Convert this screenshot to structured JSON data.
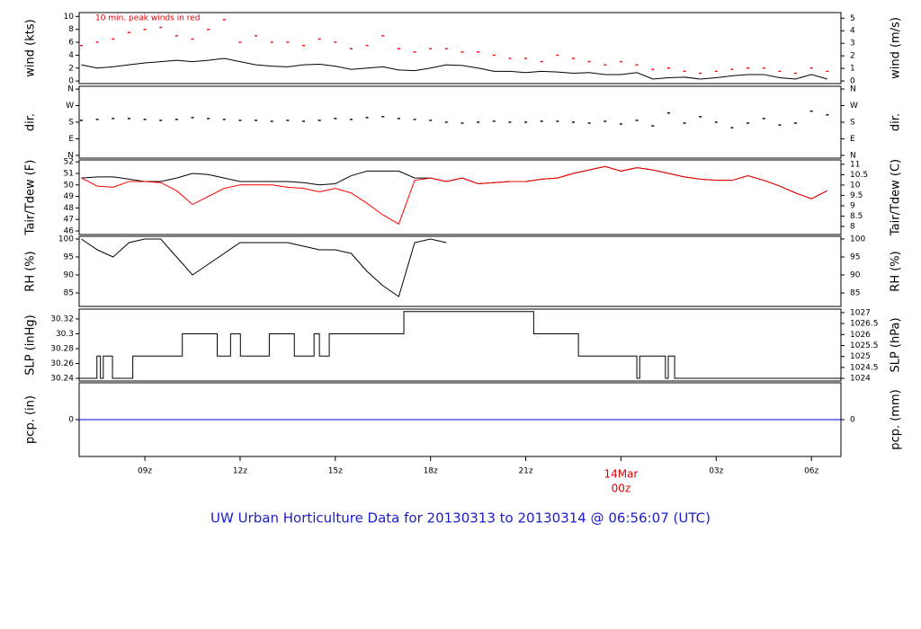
{
  "title": "UW Urban Horticulture Data for 20130313  to  20130314 @ 06:56:07  (UTC)",
  "chart_data": [
    {
      "type": "line",
      "ylabel": "wind (kts)",
      "y2label": "wind (m/s)",
      "annotation": "10 min. peak winds in red",
      "xlim": [
        6.93,
        30.93
      ],
      "ylim": [
        -0.4,
        10.6
      ],
      "yticks": [
        0,
        2,
        4,
        6,
        8,
        10
      ],
      "y2lim": [
        -0.21,
        5.45
      ],
      "y2ticks": [
        0,
        1,
        2,
        3,
        4,
        5
      ],
      "x": [
        7,
        7.5,
        8,
        8.5,
        9,
        9.5,
        10,
        10.5,
        11,
        11.5,
        12,
        12.5,
        13,
        13.5,
        14,
        14.5,
        15,
        15.5,
        16,
        16.5,
        17,
        17.5,
        18,
        18.5,
        19,
        19.5,
        20,
        20.5,
        21,
        21.5,
        22,
        22.5,
        23,
        23.5,
        24,
        24.5,
        25,
        25.5,
        26,
        26.5,
        27,
        27.5,
        28,
        28.5,
        29,
        29.5,
        30,
        30.5
      ],
      "series": [
        {
          "color": "#000000",
          "mode": "line",
          "values": [
            2.5,
            2,
            2.2,
            2.5,
            2.8,
            3,
            3.2,
            3,
            3.2,
            3.5,
            3,
            2.5,
            2.3,
            2.2,
            2.5,
            2.6,
            2.3,
            1.8,
            2,
            2.2,
            1.7,
            1.6,
            2,
            2.5,
            2.4,
            2,
            1.5,
            1.5,
            1.3,
            1.5,
            1.4,
            1.2,
            1.3,
            1,
            1,
            1.3,
            0.3,
            0.5,
            0.6,
            0.3,
            0.5,
            0.8,
            1,
            1,
            0.5,
            0.3,
            1,
            0.3
          ]
        },
        {
          "color": "#ff0000",
          "mode": "markers",
          "values": [
            5.5,
            6,
            6.5,
            7.5,
            8,
            8.3,
            7,
            6.5,
            8,
            9.5,
            6,
            7,
            6,
            6,
            5.5,
            6.5,
            6,
            5,
            5.5,
            7,
            5,
            4.5,
            5,
            5,
            4.5,
            4.5,
            4,
            3.5,
            3.5,
            3,
            4,
            3.5,
            3,
            2.5,
            3,
            2.5,
            1.8,
            2,
            1.5,
            1.2,
            1.5,
            1.8,
            2,
            2,
            1.5,
            1.2,
            2,
            1.5
          ]
        }
      ]
    },
    {
      "type": "scatter",
      "ylabel": "dir.",
      "y2label": "dir.",
      "xlim": [
        6.93,
        30.93
      ],
      "ylim": [
        -15,
        375
      ],
      "yticks": [
        {
          "value": 0,
          "label": "N"
        },
        {
          "value": 90,
          "label": "E"
        },
        {
          "value": 180,
          "label": "S"
        },
        {
          "value": 270,
          "label": "W"
        },
        {
          "value": 360,
          "label": "N"
        }
      ],
      "y2lim": [
        -15,
        375
      ],
      "y2ticks": [
        {
          "value": 0,
          "label": "N"
        },
        {
          "value": 90,
          "label": "E"
        },
        {
          "value": 180,
          "label": "S"
        },
        {
          "value": 270,
          "label": "W"
        },
        {
          "value": 360,
          "label": "N"
        }
      ],
      "x": [
        7,
        7.5,
        8,
        8.5,
        9,
        9.5,
        10,
        10.5,
        11,
        11.5,
        12,
        12.5,
        13,
        13.5,
        14,
        14.5,
        15,
        15.5,
        16,
        16.5,
        17,
        17.5,
        18,
        18.5,
        19,
        19.5,
        20,
        20.5,
        21,
        21.5,
        22,
        22.5,
        23,
        23.5,
        24,
        24.5,
        25,
        25.5,
        26,
        26.5,
        27,
        27.5,
        28,
        28.5,
        29,
        29.5,
        30,
        30.5
      ],
      "series": [
        {
          "color": "#000000",
          "mode": "markers",
          "values": [
            190,
            195,
            200,
            200,
            195,
            190,
            195,
            205,
            200,
            195,
            190,
            190,
            185,
            190,
            185,
            190,
            200,
            195,
            205,
            210,
            200,
            195,
            190,
            180,
            175,
            180,
            185,
            180,
            180,
            185,
            185,
            180,
            175,
            185,
            170,
            190,
            160,
            230,
            175,
            210,
            180,
            150,
            175,
            200,
            165,
            175,
            240,
            220
          ]
        }
      ]
    },
    {
      "type": "line",
      "ylabel": "Tair/Tdew (F)",
      "y2label": "Tair/Tdew (C)",
      "xlim": [
        6.93,
        30.93
      ],
      "ylim": [
        45.69,
        52.17
      ],
      "yticks": [
        46,
        47,
        48,
        49,
        50,
        51,
        52
      ],
      "y2lim": [
        7.61,
        11.21
      ],
      "y2ticks": [
        8,
        8.5,
        9,
        9.5,
        10,
        10.5,
        11
      ],
      "x": [
        7,
        7.5,
        8,
        8.5,
        9,
        9.5,
        10,
        10.5,
        11,
        11.5,
        12,
        12.5,
        13,
        13.5,
        14,
        14.5,
        15,
        15.5,
        16,
        16.5,
        17,
        17.5,
        18,
        18.5,
        19,
        19.5,
        20,
        20.5,
        21,
        21.5,
        22,
        22.5,
        23,
        23.5,
        24,
        24.5,
        25,
        25.5,
        26,
        26.5,
        27,
        27.5,
        28,
        28.5,
        29,
        29.5,
        30,
        30.5
      ],
      "series": [
        {
          "color": "#000000",
          "mode": "line",
          "values": [
            50.6,
            50.7,
            50.7,
            50.5,
            50.3,
            50.3,
            50.6,
            51,
            50.9,
            50.6,
            50.3,
            50.3,
            50.3,
            50.3,
            50.2,
            50,
            50.1,
            50.8,
            51.2,
            51.2,
            51.2,
            50.6,
            50.6,
            50.3,
            50.6,
            50.1,
            50.2,
            50.3,
            50.3,
            50.5,
            50.6,
            51,
            51.3,
            51.6,
            51.2,
            51.5,
            51.3,
            51,
            50.7,
            50.5,
            50.4,
            50.4,
            50.8,
            50.4,
            49.9,
            49.3,
            48.8,
            49.5
          ]
        },
        {
          "color": "#ff0000",
          "mode": "line",
          "values": [
            50.6,
            49.9,
            49.8,
            50.3,
            50.3,
            50.2,
            49.5,
            48.3,
            49,
            49.7,
            50,
            50,
            50,
            49.8,
            49.7,
            49.4,
            49.7,
            49.3,
            48.4,
            47.4,
            46.6,
            50.4,
            50.6,
            50.3,
            50.6,
            50.1,
            50.2,
            50.3,
            50.3,
            50.5,
            50.6,
            51,
            51.3,
            51.6,
            51.2,
            51.5,
            51.3,
            51,
            50.7,
            50.5,
            50.4,
            50.4,
            50.8,
            50.4,
            49.9,
            49.3,
            48.8,
            49.5
          ]
        }
      ]
    },
    {
      "type": "line",
      "ylabel": "RH (%)",
      "y2label": "RH (%)",
      "xlim": [
        6.93,
        30.93
      ],
      "ylim": [
        81.25,
        100.75
      ],
      "yticks": [
        85,
        90,
        95,
        100
      ],
      "y2lim": [
        81.25,
        100.75
      ],
      "y2ticks": [
        85,
        90,
        95,
        100
      ],
      "x": [
        7,
        7.5,
        8,
        8.5,
        9,
        9.5,
        10,
        10.5,
        11,
        11.5,
        12,
        12.5,
        13,
        13.5,
        14,
        14.5,
        15,
        15.5,
        16,
        16.5,
        17,
        17.5,
        18,
        18.5,
        19,
        19.5,
        20,
        20.5,
        21,
        21.5,
        22,
        22.5,
        23,
        23.5,
        24,
        24.5,
        25,
        25.5,
        26,
        26.5,
        27,
        27.5,
        28,
        28.5,
        29,
        29.5,
        30,
        30.5
      ],
      "series": [
        {
          "color": "#000000",
          "mode": "line",
          "values": [
            100,
            97,
            95,
            99,
            100,
            100,
            95,
            90,
            93,
            96,
            99,
            99,
            99,
            99,
            98,
            97,
            97,
            96,
            91,
            87,
            84,
            99,
            100,
            99,
            null,
            null,
            null,
            null,
            null,
            null,
            null,
            null,
            null,
            null,
            null,
            null,
            null,
            null,
            null,
            null,
            null,
            null,
            null,
            null,
            null,
            null,
            null,
            null
          ]
        }
      ]
    },
    {
      "type": "line",
      "ylabel": "SLP (inHg)",
      "y2label": "SLP (hPa)",
      "step": "post",
      "xlim": [
        6.93,
        30.93
      ],
      "ylim": [
        30.2364,
        30.3333
      ],
      "yticks": [
        30.24,
        30.26,
        30.28,
        30.3,
        30.32
      ],
      "y2lim": [
        1023.88,
        1027.16
      ],
      "y2ticks": [
        1024,
        1024.5,
        1025,
        1025.5,
        1026,
        1026.5,
        1027
      ],
      "x": [
        6.93,
        7.49,
        7.6,
        7.69,
        7.98,
        8.62,
        10.18,
        11.28,
        11.7,
        12.01,
        12.92,
        13.71,
        14.33,
        14.5,
        14.81,
        17.16,
        21.25,
        22.66,
        24.5,
        24.59,
        25.4,
        25.49,
        25.69,
        30.93
      ],
      "series": [
        {
          "color": "#000000",
          "mode": "line",
          "values": [
            30.24,
            30.27,
            30.24,
            30.27,
            30.24,
            30.27,
            30.3,
            30.27,
            30.3,
            30.27,
            30.3,
            30.27,
            30.3,
            30.27,
            30.3,
            30.33,
            30.3,
            30.27,
            30.24,
            30.27,
            30.24,
            30.27,
            30.24,
            30.24
          ]
        }
      ]
    },
    {
      "type": "line",
      "ylabel": "pcp. (in)",
      "y2label": "pcp. (mm)",
      "xlim": [
        6.93,
        30.93
      ],
      "ylim": [
        -1,
        1
      ],
      "yticks": [
        0
      ],
      "y2lim": [
        -1,
        1
      ],
      "y2ticks": [
        0
      ],
      "xticks": [
        {
          "value": 9,
          "label": "09z"
        },
        {
          "value": 12,
          "label": "12z"
        },
        {
          "value": 15,
          "label": "15z"
        },
        {
          "value": 18,
          "label": "18z"
        },
        {
          "value": 21,
          "label": "21z"
        },
        {
          "value": 24,
          "label": "00z"
        },
        {
          "value": 27,
          "label": "03z"
        },
        {
          "value": 30,
          "label": "06z"
        }
      ],
      "x_date_label": "14Mar",
      "x": [
        6.93,
        30.93
      ],
      "series": [
        {
          "color": "#0000ff",
          "mode": "line",
          "values": [
            0,
            0
          ]
        }
      ]
    }
  ]
}
